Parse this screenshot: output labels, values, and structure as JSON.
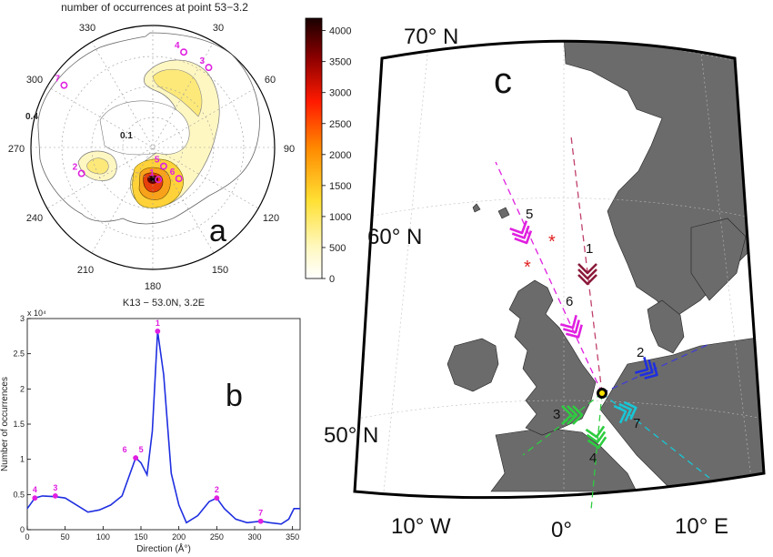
{
  "chart_data": [
    {
      "panel": "a",
      "type": "heatmap",
      "subtype": "polar-contour",
      "title": "number of occurrences at point 53−3.2",
      "panel_label": "a",
      "angle_ticks": [
        "30",
        "60",
        "90",
        "120",
        "150",
        "180",
        "210",
        "240",
        "270",
        "300",
        "330"
      ],
      "radial_labels": [
        "0.1",
        "0.4"
      ],
      "colorbar": {
        "min": 0,
        "max": 4000,
        "ticks": [
          "0",
          "500",
          "1000",
          "1500",
          "2000",
          "2500",
          "3000",
          "3500",
          "4000"
        ]
      },
      "peaks": [
        {
          "id": "1",
          "direction": 170,
          "radius": 0.12
        },
        {
          "id": "2",
          "direction": 250,
          "radius": 0.28
        },
        {
          "id": "3",
          "direction": 35,
          "radius": 0.36
        },
        {
          "id": "4",
          "direction": 18,
          "radius": 0.37
        },
        {
          "id": "5",
          "direction": 150,
          "radius": 0.08
        },
        {
          "id": "6",
          "direction": 140,
          "radius": 0.15
        },
        {
          "id": "7",
          "direction": 305,
          "radius": 0.4
        }
      ]
    },
    {
      "panel": "b",
      "type": "line",
      "title": "K13 − 53.0N, 3.2E",
      "panel_label": "b",
      "xlabel": "Direction (Å°)",
      "ylabel": "Number of occurrences",
      "multiplier": "x 10⁴",
      "xlim": [
        0,
        360
      ],
      "ylim": [
        0,
        3
      ],
      "x_ticks": [
        "0",
        "50",
        "100",
        "150",
        "200",
        "250",
        "300",
        "350"
      ],
      "y_ticks": [
        "0",
        "0.5",
        "1",
        "1.5",
        "2",
        "2.5",
        "3"
      ],
      "series": [
        {
          "name": "occurrences",
          "color": "#1f2fe0",
          "x": [
            0,
            10,
            20,
            37,
            50,
            65,
            80,
            95,
            110,
            125,
            143,
            150,
            158,
            165,
            172,
            180,
            190,
            200,
            210,
            225,
            240,
            250,
            260,
            275,
            290,
            308,
            320,
            335,
            345,
            352,
            360
          ],
          "y": [
            0.3,
            0.45,
            0.48,
            0.47,
            0.45,
            0.35,
            0.25,
            0.28,
            0.35,
            0.48,
            1.02,
            0.95,
            0.78,
            1.4,
            2.82,
            2.2,
            0.8,
            0.35,
            0.1,
            0.2,
            0.4,
            0.45,
            0.3,
            0.15,
            0.1,
            0.12,
            0.1,
            0.08,
            0.15,
            0.3,
            0.3
          ]
        }
      ],
      "peaks": [
        {
          "id": "1",
          "x": 172,
          "y": 2.82
        },
        {
          "id": "2",
          "x": 250,
          "y": 0.45
        },
        {
          "id": "3",
          "x": 37,
          "y": 0.48
        },
        {
          "id": "4",
          "x": 10,
          "y": 0.45
        },
        {
          "id": "5",
          "x": 143,
          "y": 1.02
        },
        {
          "id": "6",
          "x": 143,
          "y": 1.02
        },
        {
          "id": "7",
          "x": 308,
          "y": 0.12
        }
      ]
    },
    {
      "panel": "c",
      "type": "other",
      "subtype": "map",
      "panel_label": "c",
      "latitude_labels": [
        "70° N",
        "60° N",
        "50° N"
      ],
      "longitude_labels": [
        "10° W",
        "0°",
        "10° E"
      ],
      "arrows": [
        {
          "id": "1",
          "color": "#8b1a3a"
        },
        {
          "id": "2",
          "color": "#1f2fe0"
        },
        {
          "id": "3",
          "color": "#2ecc40"
        },
        {
          "id": "4",
          "color": "#2ecc40"
        },
        {
          "id": "5",
          "color": "#e020e0"
        },
        {
          "id": "6",
          "color": "#e020e0"
        },
        {
          "id": "7",
          "color": "#19c6d6"
        }
      ],
      "marker_color": "#f5e000"
    }
  ]
}
